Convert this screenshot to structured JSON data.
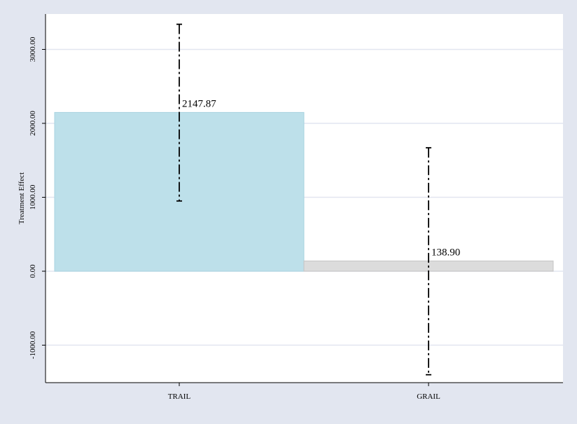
{
  "chart_data": {
    "type": "bar",
    "title": "",
    "xlabel": "",
    "ylabel": "Treatment Effect",
    "ylim": [
      -1500,
      3400
    ],
    "yticks": [
      -1000,
      0,
      1000,
      2000,
      3000
    ],
    "ytick_labels": [
      "-1000.00",
      "0.00",
      "1000.00",
      "2000.00",
      "3000.00"
    ],
    "grid": true,
    "categories": [
      "TRAIL",
      "GRAIL"
    ],
    "values": [
      2147.87,
      138.9
    ],
    "value_labels": [
      "2147.87",
      "138.90"
    ],
    "error_bars": [
      {
        "low": 950,
        "high": 3340
      },
      {
        "low": -1400,
        "high": 1670
      }
    ],
    "bar_colors": [
      "#bde0ea",
      "#dcdcdc"
    ],
    "bar_edge_colors": [
      "#a9d3e0",
      "#c4c4c4"
    ],
    "error_bar_style": "dash-dot",
    "colors": {
      "background": "#e2e6f0",
      "plot_area": "#ffffff",
      "grid": "#e2e6f0",
      "axis": "#000000",
      "error_bar": "#000000"
    }
  }
}
